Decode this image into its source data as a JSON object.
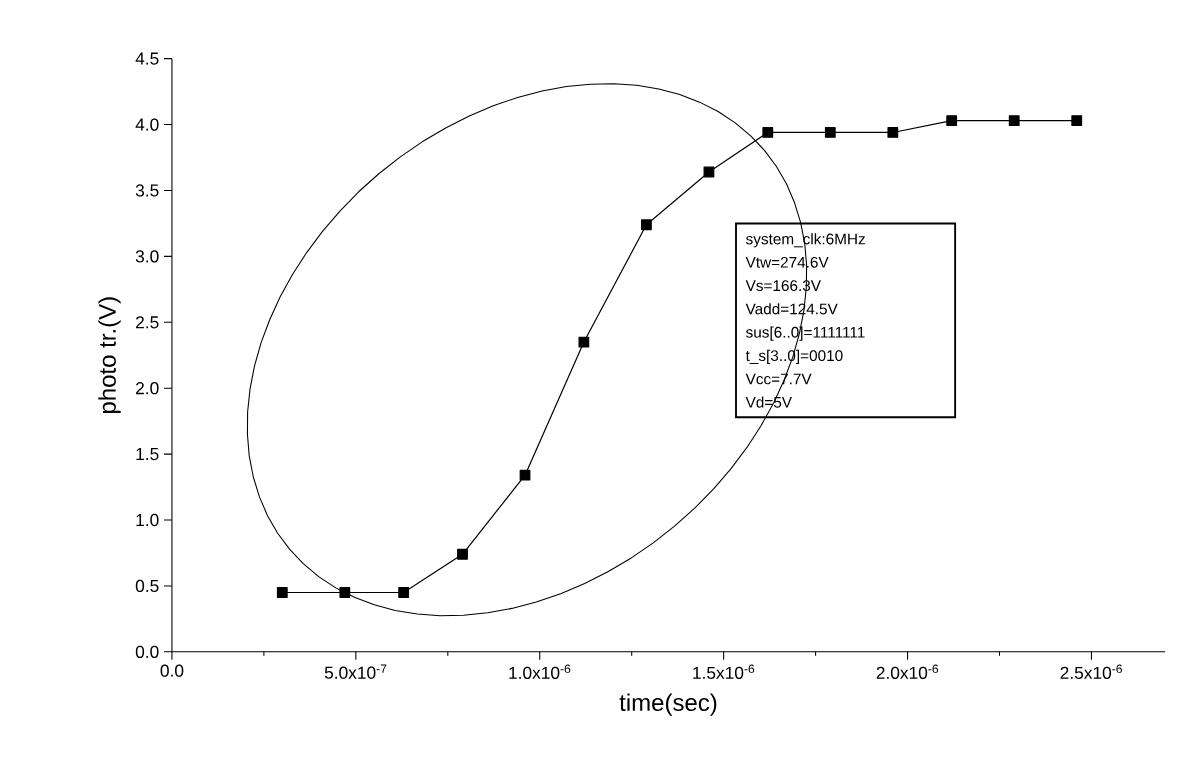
{
  "chart_data": {
    "type": "line",
    "xlabel": "time(sec)",
    "ylabel": "photo tr.(V)",
    "x": [
      3e-07,
      4.7e-07,
      6.3e-07,
      7.9e-07,
      9.6e-07,
      1.12e-06,
      1.29e-06,
      1.46e-06,
      1.62e-06,
      1.79e-06,
      1.96e-06,
      2.12e-06,
      2.29e-06,
      2.46e-06
    ],
    "series": [
      {
        "color": "#000000",
        "values": [
          0.45,
          0.45,
          0.45,
          0.74,
          1.34,
          2.35,
          3.24,
          3.64,
          3.94,
          3.94,
          3.94,
          4.03,
          4.03,
          4.03
        ]
      }
    ],
    "xlim": [
      0,
      2.7e-06
    ],
    "ylim": [
      0,
      4.5
    ],
    "xticks": [
      {
        "value": 0,
        "label": "0.0"
      },
      {
        "value": 5e-07,
        "label": "5.0x10$^{-7}$"
      },
      {
        "value": 1e-06,
        "label": "1.0x10$^{-6}$"
      },
      {
        "value": 1.5e-06,
        "label": "1.5x10$^{-6}$"
      },
      {
        "value": 2e-06,
        "label": "2.0x10$^{-6}$"
      },
      {
        "value": 2.5e-06,
        "label": "2.5x10$^{-6}$"
      }
    ],
    "yticks": [
      {
        "value": 0,
        "label": "0.0"
      },
      {
        "value": 0.5,
        "label": "0.5"
      },
      {
        "value": 1,
        "label": "1.0"
      },
      {
        "value": 1.5,
        "label": "1.5"
      },
      {
        "value": 2,
        "label": "2.0"
      },
      {
        "value": 2.5,
        "label": "2.5"
      },
      {
        "value": 3,
        "label": "3.0"
      },
      {
        "value": 3.5,
        "label": "3.5"
      },
      {
        "value": 4,
        "label": "4.0"
      },
      {
        "value": 4.5,
        "label": "4.5"
      }
    ],
    "grid": false,
    "marker": "square",
    "line_style": "solid",
    "annotations": [
      "system_clk:6MHz",
      "Vtw=274.6V",
      "Vs=166.3V",
      "Vadd=124.5V",
      "sus[6..0]=1111111",
      "t_s[3..0]=0010",
      "Vcc=7.7V",
      "Vd=5V"
    ]
  }
}
